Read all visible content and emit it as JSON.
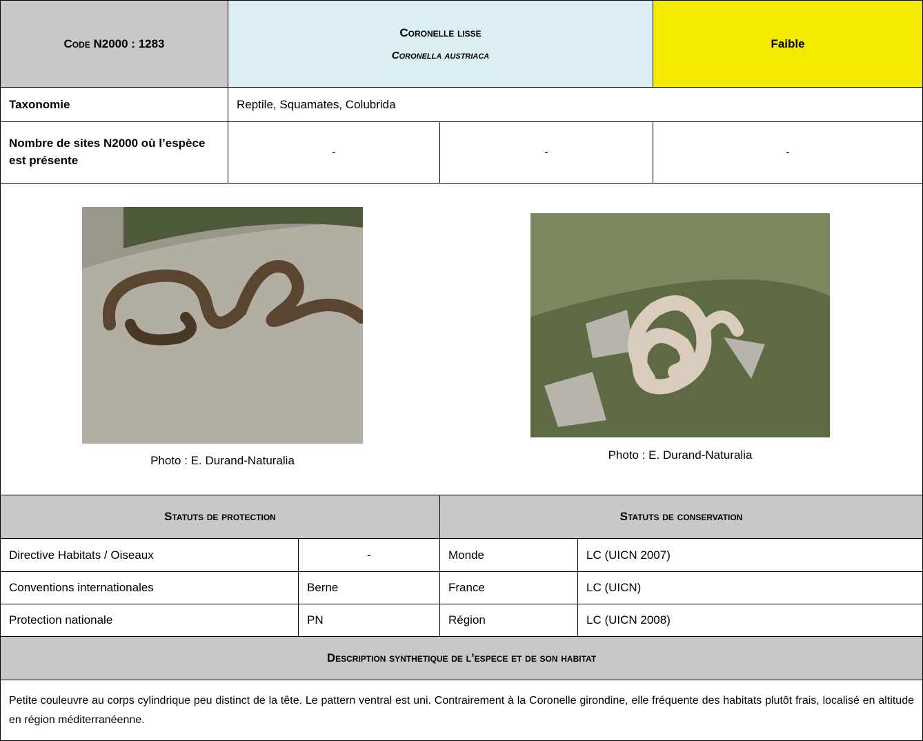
{
  "header": {
    "code": "Code N2000 : 1283",
    "common_name": "Coronelle lisse",
    "latin_name": "Coronella austriaca",
    "priority": "Faible"
  },
  "taxonomy": {
    "label": "Taxonomie",
    "value": "Reptile, Squamates, Colubrida"
  },
  "sites": {
    "label": "Nombre de sites N2000 où l’espèce est présente",
    "values": [
      "-",
      "-",
      "-"
    ]
  },
  "photos": [
    {
      "caption": "Photo : E. Durand-Naturalia"
    },
    {
      "caption": "Photo : E. Durand-Naturalia"
    }
  ],
  "protection": {
    "title": "Statuts de protection",
    "rows": [
      [
        "Directive Habitats / Oiseaux",
        "-"
      ],
      [
        "Conventions internationales",
        "Berne"
      ],
      [
        "Protection nationale",
        "PN"
      ]
    ]
  },
  "conservation": {
    "title": "Statuts de conservation",
    "rows": [
      [
        "Monde",
        "LC (UICN 2007)"
      ],
      [
        "France",
        "LC (UICN)"
      ],
      [
        "Région",
        "LC (UICN 2008)"
      ]
    ]
  },
  "description": {
    "title": "Description synthetique de l’espece et de son habitat",
    "text": "Petite couleuvre au corps cylindrique peu distinct de la tête. Le pattern ventral est uni. Contrairement à la Coronelle girondine, elle fréquente des habitats plutôt frais, localisé en altitude en région méditerranéenne."
  }
}
